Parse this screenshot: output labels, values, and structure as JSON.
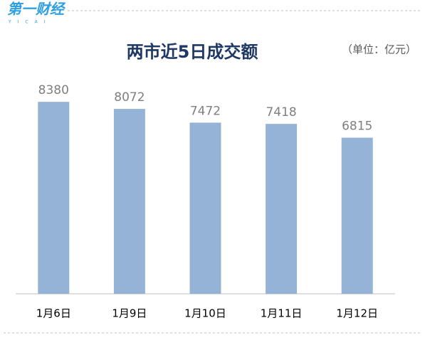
{
  "logo": {
    "text": "第一财经",
    "sub": "YICAI"
  },
  "chart_data": {
    "type": "bar",
    "title": "两市近5日成交额",
    "subtitle": "（单位：亿元）",
    "categories": [
      "1月6日",
      "1月9日",
      "1月10日",
      "1月11日",
      "1月12日"
    ],
    "values": [
      8380,
      8072,
      7472,
      7418,
      6815
    ],
    "color": "#95b3d7",
    "ylim": [
      0,
      10000
    ],
    "grid": false,
    "data_labels": true
  }
}
